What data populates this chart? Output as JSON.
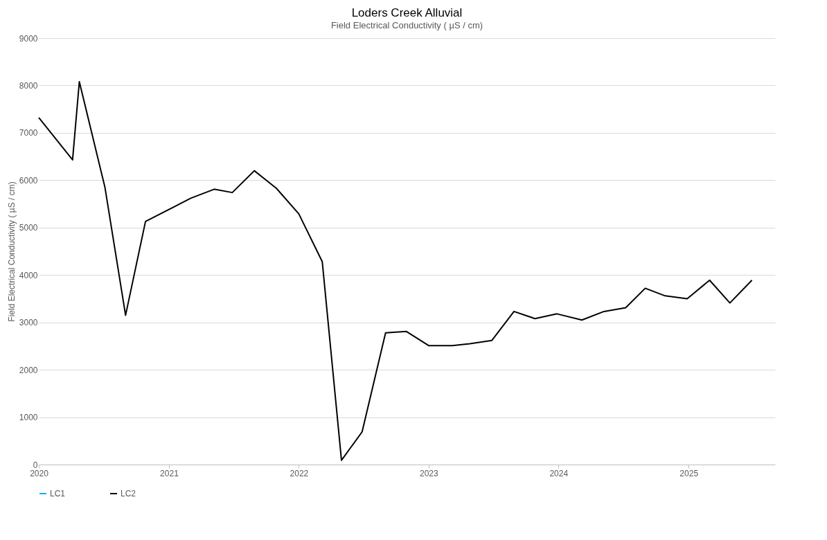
{
  "chart_data": {
    "type": "line",
    "title": "Loders Creek Alluvial",
    "subtitle": "Field Electrical Conductivity (  µS / cm)",
    "ylabel": "Field Electrical Conductivity ( µS / cm)",
    "x": [
      "2020-01-01",
      "2020-04-05",
      "2020-04-24",
      "2020-07-05",
      "2020-09-01",
      "2020-10-27",
      "2021-03-03",
      "2021-05-08",
      "2021-06-28",
      "2021-08-29",
      "2021-10-30",
      "2022-01-01",
      "2022-03-08",
      "2022-05-01",
      "2022-06-28",
      "2022-09-02",
      "2022-10-30",
      "2023-01-01",
      "2023-03-08",
      "2023-04-27",
      "2023-06-28",
      "2023-08-29",
      "2023-10-27",
      "2023-12-28",
      "2024-03-07",
      "2024-05-08",
      "2024-07-08",
      "2024-09-01",
      "2024-10-27",
      "2024-12-28",
      "2025-03-01",
      "2025-04-27",
      "2025-06-28"
    ],
    "series": [
      {
        "name": "LC1",
        "color": "#00b0f0",
        "values": [
          null,
          null,
          null,
          null,
          null,
          null,
          null,
          null,
          null,
          null,
          null,
          null,
          null,
          null,
          null,
          null,
          null,
          null,
          null,
          null,
          null,
          null,
          null,
          null,
          null,
          null,
          null,
          null,
          null,
          null,
          null,
          null,
          null
        ]
      },
      {
        "name": "LC2",
        "color": "#000000",
        "values": [
          7320,
          6430,
          8080,
          5850,
          3150,
          5130,
          5620,
          5810,
          5740,
          6200,
          5830,
          5290,
          4280,
          90,
          690,
          2780,
          2810,
          2510,
          2510,
          2550,
          2620,
          3230,
          3080,
          3180,
          3050,
          3230,
          3310,
          3720,
          3560,
          3500,
          3890,
          3410,
          3890
        ]
      }
    ],
    "xlim": [
      "2020-01-01",
      "2025-09-01"
    ],
    "xticks": [
      "2020",
      "2021",
      "2022",
      "2023",
      "2024",
      "2025"
    ],
    "ylim": [
      0,
      9000
    ],
    "yticks": [
      0,
      1000,
      2000,
      3000,
      4000,
      5000,
      6000,
      7000,
      8000,
      9000
    ],
    "grid": "y",
    "legend": "bottom",
    "marker": "none",
    "line_style": "solid"
  }
}
